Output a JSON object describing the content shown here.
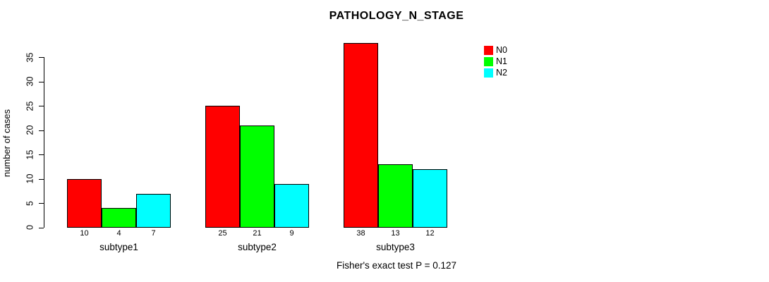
{
  "chart_data": {
    "type": "bar",
    "title": "PATHOLOGY_N_STAGE",
    "ylabel": "number of cases",
    "xlabel": "",
    "annotation": "Fisher's exact test P = 0.127",
    "categories": [
      "subtype1",
      "subtype2",
      "subtype3"
    ],
    "series": [
      {
        "name": "N0",
        "color": "#ff0000",
        "values": [
          10,
          25,
          38
        ]
      },
      {
        "name": "N1",
        "color": "#00ff00",
        "values": [
          4,
          21,
          13
        ]
      },
      {
        "name": "N2",
        "color": "#00ffff",
        "values": [
          7,
          9,
          12
        ]
      }
    ],
    "yticks": [
      0,
      5,
      10,
      15,
      20,
      25,
      30,
      35
    ],
    "ylim": [
      0,
      38
    ],
    "grid": false,
    "legend_position": "top-right",
    "bar_value_labels_shown": true,
    "colors": {
      "axis": "#000000",
      "background": "#ffffff"
    }
  }
}
